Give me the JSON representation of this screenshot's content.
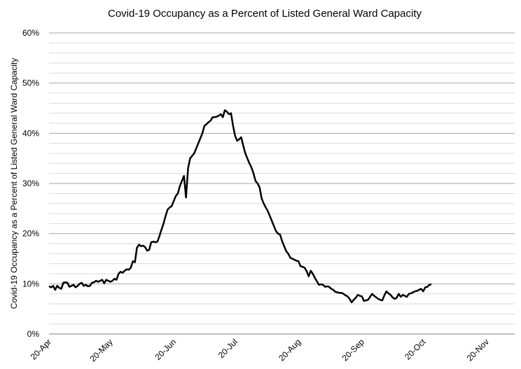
{
  "chart_data": {
    "type": "line",
    "title": "Covid-19 Occupancy as a Percent of Listed General Ward Capacity",
    "y_label": "Covid-19 Occupancy as a Percent of Listed General Ward Capacity",
    "categories": [
      "20-Apr",
      null,
      null,
      null,
      null,
      null,
      null,
      null,
      null,
      null,
      null,
      null,
      null,
      null,
      null,
      null,
      null,
      null,
      null,
      null,
      null,
      null,
      null,
      null,
      null,
      null,
      null,
      null,
      null,
      null,
      "20-May",
      null,
      null,
      null,
      null,
      null,
      null,
      null,
      null,
      null,
      null,
      null,
      null,
      null,
      null,
      null,
      null,
      null,
      null,
      null,
      null,
      null,
      null,
      null,
      null,
      null,
      null,
      null,
      null,
      null,
      null,
      "20-Jun",
      null,
      null,
      null,
      null,
      null,
      null,
      null,
      null,
      null,
      null,
      null,
      null,
      null,
      null,
      null,
      null,
      null,
      null,
      null,
      null,
      null,
      null,
      null,
      null,
      null,
      null,
      null,
      null,
      null,
      "20-Jul",
      null,
      null,
      null,
      null,
      null,
      null,
      null,
      null,
      null,
      null,
      null,
      null,
      null,
      null,
      null,
      null,
      null,
      null,
      null,
      null,
      null,
      null,
      null,
      null,
      null,
      null,
      null,
      null,
      null,
      null,
      "20-Aug",
      null,
      null,
      null,
      null,
      null,
      null,
      null,
      null,
      null,
      null,
      null,
      null,
      null,
      null,
      null,
      null,
      null,
      null,
      null,
      null,
      null,
      null,
      null,
      null,
      null,
      null,
      null,
      null,
      null,
      null,
      "20-Sep",
      null,
      null,
      null,
      null,
      null,
      null,
      null,
      null,
      null,
      null,
      null,
      null,
      null,
      null,
      null,
      null,
      null,
      null,
      null,
      null,
      null,
      null,
      null,
      null,
      null,
      null,
      null,
      null,
      null,
      "20-Oct",
      null,
      null,
      null,
      null,
      null,
      null,
      null,
      null,
      null,
      null,
      null,
      null,
      null,
      null,
      null,
      null,
      null,
      null,
      null,
      null,
      null,
      null,
      null,
      null,
      null,
      null,
      null,
      null,
      null,
      null,
      "20-Nov"
    ],
    "series": [
      {
        "color": "#000000",
        "values": [
          9.5,
          9.3,
          9.6,
          8.8,
          9.6,
          9.2,
          9.0,
          10.2,
          10.3,
          10.2,
          9.4,
          9.6,
          9.8,
          9.3,
          9.6,
          10.0,
          10.2,
          9.6,
          9.8,
          9.5,
          9.6,
          10.2,
          10.3,
          10.6,
          10.4,
          10.6,
          10.8,
          10.1,
          10.8,
          10.6,
          10.4,
          10.6,
          11.0,
          10.8,
          12.0,
          12.4,
          12.2,
          12.6,
          12.9,
          12.8,
          13.2,
          14.5,
          14.3,
          17.2,
          17.8,
          17.5,
          17.6,
          17.3,
          16.6,
          16.8,
          18.3,
          18.4,
          18.3,
          18.4,
          19.5,
          20.8,
          22.0,
          23.5,
          24.8,
          25.2,
          25.5,
          26.5,
          27.5,
          28.0,
          29.5,
          30.5,
          31.5,
          27.2,
          33.0,
          35.0,
          35.5,
          36.0,
          37.0,
          38.0,
          39.0,
          40.0,
          41.5,
          41.8,
          42.2,
          42.5,
          43.2,
          43.2,
          43.3,
          43.5,
          43.8,
          43.2,
          44.6,
          44.3,
          43.8,
          44.0,
          41.5,
          39.5,
          38.5,
          38.8,
          39.2,
          37.5,
          36.0,
          35.0,
          34.0,
          33.2,
          32.0,
          30.5,
          30.0,
          29.2,
          27.0,
          26.0,
          25.2,
          24.5,
          23.5,
          22.5,
          21.5,
          20.5,
          20.0,
          19.8,
          18.5,
          17.5,
          16.5,
          16.0,
          15.2,
          15.0,
          14.8,
          14.6,
          14.5,
          13.5,
          13.4,
          13.2,
          12.5,
          11.5,
          12.6,
          12.0,
          11.2,
          10.5,
          9.8,
          9.9,
          9.8,
          9.4,
          9.5,
          9.4,
          9.0,
          8.8,
          8.4,
          8.3,
          8.2,
          8.2,
          8.0,
          7.7,
          7.5,
          7.0,
          6.3,
          6.8,
          7.2,
          7.8,
          7.6,
          7.5,
          6.6,
          6.7,
          6.8,
          7.4,
          8.0,
          7.6,
          7.3,
          7.0,
          6.8,
          6.7,
          7.7,
          8.5,
          8.1,
          7.8,
          7.3,
          7.0,
          7.2,
          8.0,
          7.4,
          7.8,
          7.6,
          7.4,
          8.0,
          8.1,
          8.3,
          8.5,
          8.6,
          8.8,
          9.0,
          8.5,
          9.3,
          9.4,
          9.8,
          9.9,
          null,
          null,
          null,
          null,
          null,
          null,
          null,
          null,
          null,
          null,
          null,
          null,
          null,
          null,
          null,
          null,
          null,
          null,
          null,
          null,
          null,
          null,
          null,
          null,
          null,
          null,
          null
        ]
      }
    ],
    "ylim": [
      0,
      60
    ],
    "yticks": [
      {
        "value": 0,
        "label": "0%"
      },
      {
        "value": 10,
        "label": "10%"
      },
      {
        "value": 20,
        "label": "20%"
      },
      {
        "value": 30,
        "label": "30%"
      },
      {
        "value": 40,
        "label": "40%"
      },
      {
        "value": 50,
        "label": "50%"
      },
      {
        "value": 60,
        "label": "60%"
      }
    ],
    "yminorticks": [
      2,
      4,
      6,
      8,
      12,
      14,
      16,
      18,
      22,
      24,
      26,
      28,
      32,
      34,
      36,
      38,
      42,
      44,
      46,
      48,
      52,
      54,
      56,
      58
    ],
    "grid": true
  }
}
